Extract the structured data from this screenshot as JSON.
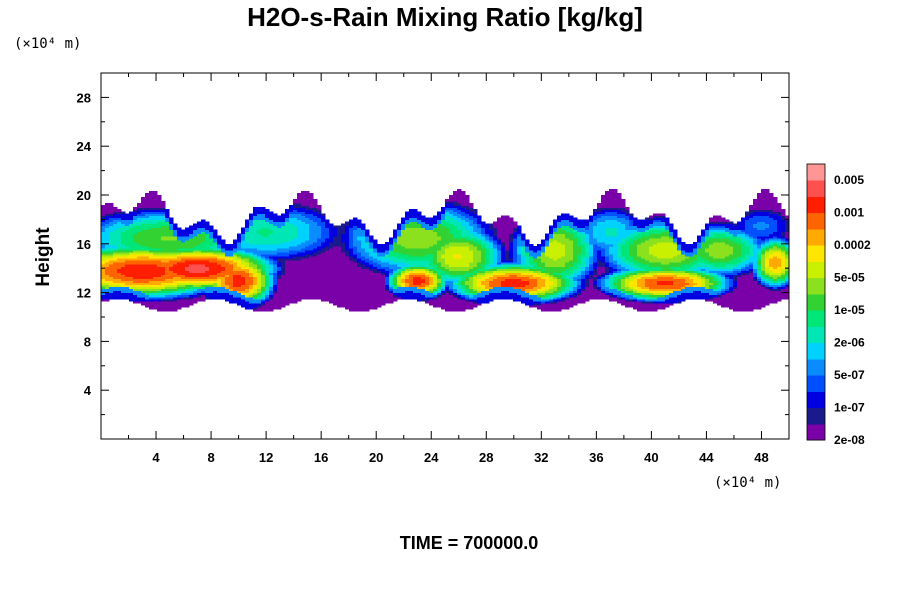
{
  "chart_data": {
    "type": "heatmap",
    "title": "H2O-s-Rain Mixing Ratio [kg/kg]",
    "xlabel": "",
    "ylabel": "Height",
    "x_unit_label": "(×10⁴ m)",
    "y_unit_label": "(×10⁴ m)",
    "xlim": [
      0,
      50
    ],
    "ylim": [
      0,
      30
    ],
    "x_ticks": [
      4,
      8,
      12,
      16,
      20,
      24,
      28,
      32,
      36,
      40,
      44,
      48
    ],
    "y_ticks": [
      4,
      8,
      12,
      16,
      20,
      24,
      28
    ],
    "grid": false,
    "time_label": "TIME = 700000.0",
    "colorbar": {
      "labels": [
        "0.005",
        "0.001",
        "0.0002",
        "5e-05",
        "1e-05",
        "2e-06",
        "5e-07",
        "1e-07",
        "2e-08"
      ],
      "colors": [
        "#7a00a8",
        "#1a1a8c",
        "#0000e0",
        "#0050ff",
        "#0a8cff",
        "#00d2ff",
        "#00e6b4",
        "#00e678",
        "#32d232",
        "#8ce11e",
        "#c8f000",
        "#ffe600",
        "#ffaa00",
        "#ff6400",
        "#ff1e00",
        "#ff5050",
        "#ff9696"
      ]
    },
    "field": {
      "description_units": "log10 mixing ratio, centers in data units",
      "background_level": -8.5,
      "band_y_range": [
        11,
        19
      ],
      "blobs": [
        {
          "x": 3,
          "y": 13.8,
          "sx": 3.6,
          "sy": 1.2,
          "level": -3.5
        },
        {
          "x": 7,
          "y": 14.0,
          "sx": 3.0,
          "sy": 1.0,
          "level": -3.3
        },
        {
          "x": 10,
          "y": 13.0,
          "sx": 1.4,
          "sy": 1.2,
          "level": -3.6
        },
        {
          "x": 5,
          "y": 16.5,
          "sx": 4.5,
          "sy": 1.6,
          "level": -5.5
        },
        {
          "x": 12,
          "y": 17.0,
          "sx": 4.0,
          "sy": 1.8,
          "level": -6.2
        },
        {
          "x": 23,
          "y": 13.0,
          "sx": 1.2,
          "sy": 0.8,
          "level": -3.6
        },
        {
          "x": 23,
          "y": 16.5,
          "sx": 3.5,
          "sy": 2.0,
          "level": -5.3
        },
        {
          "x": 26,
          "y": 15.0,
          "sx": 2.0,
          "sy": 1.5,
          "level": -4.8
        },
        {
          "x": 30,
          "y": 12.8,
          "sx": 2.6,
          "sy": 0.9,
          "level": -3.6
        },
        {
          "x": 33,
          "y": 15.5,
          "sx": 2.0,
          "sy": 2.0,
          "level": -5.0
        },
        {
          "x": 37,
          "y": 17.0,
          "sx": 2.0,
          "sy": 1.6,
          "level": -6.5
        },
        {
          "x": 41,
          "y": 12.8,
          "sx": 2.6,
          "sy": 0.8,
          "level": -3.7
        },
        {
          "x": 41,
          "y": 15.5,
          "sx": 3.0,
          "sy": 1.6,
          "level": -5.0
        },
        {
          "x": 45,
          "y": 15.5,
          "sx": 2.2,
          "sy": 1.4,
          "level": -5.3
        },
        {
          "x": 49,
          "y": 14.5,
          "sx": 1.0,
          "sy": 1.2,
          "level": -4.3
        },
        {
          "x": 48,
          "y": 17.5,
          "sx": 2.0,
          "sy": 1.4,
          "level": -7.2
        }
      ]
    }
  }
}
